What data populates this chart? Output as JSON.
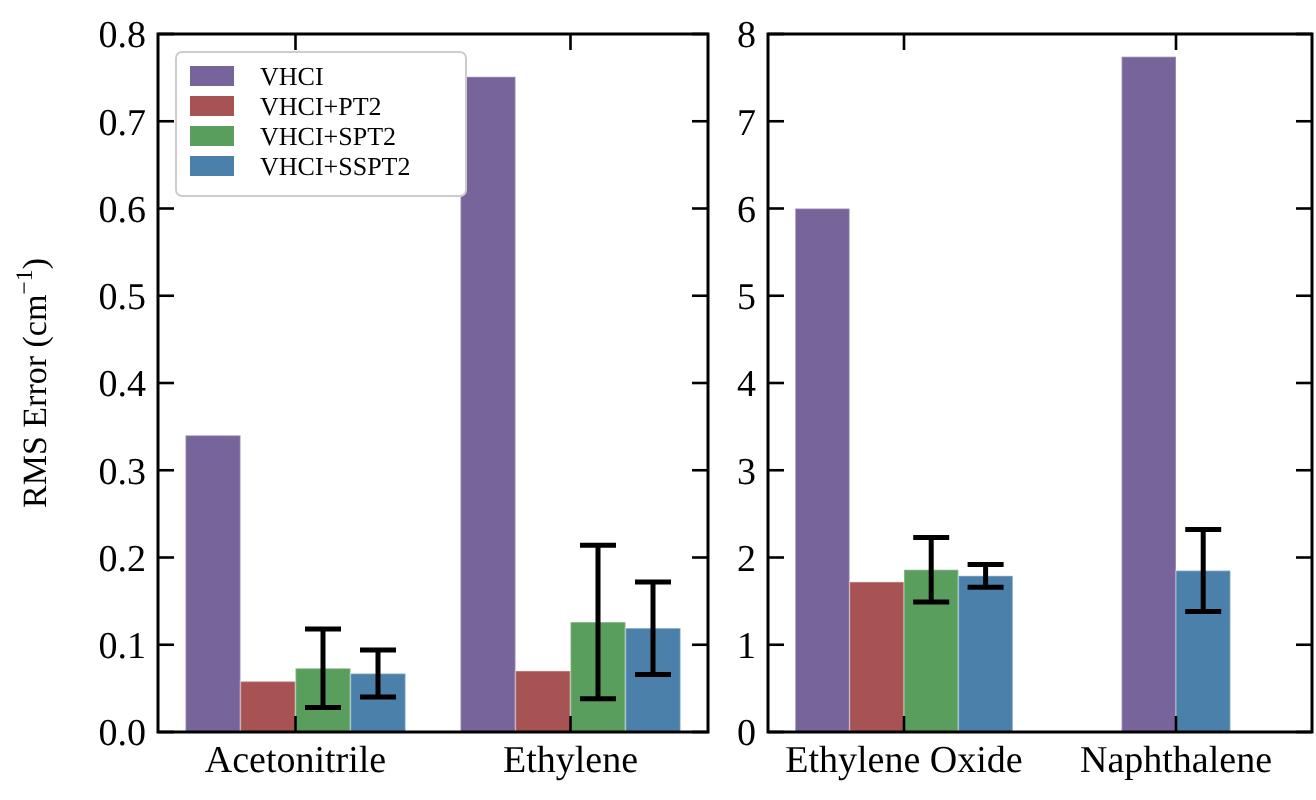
{
  "chart_data": [
    {
      "type": "bar",
      "ylabel": "RMS Error (cm$^{−1}$)",
      "categories": [
        "Acetonitrile",
        "Ethylene"
      ],
      "ylim": [
        0,
        0.8
      ],
      "yticks": [
        {
          "value": 0,
          "label": "0.0"
        },
        0.1,
        0.2,
        0.3,
        0.4,
        0.5,
        0.6,
        0.7,
        0.8
      ],
      "legend": "top left",
      "series": [
        {
          "name": "VHCI",
          "color": "#76649a",
          "values": [
            0.34,
            0.751
          ]
        },
        {
          "name": "VHCI+PT2",
          "color": "#a85353",
          "values": [
            0.058,
            0.07
          ]
        },
        {
          "name": "VHCI+SPT2",
          "color": "#5a9e5e",
          "values": [
            0.073,
            0.126
          ],
          "errors": [
            0.045,
            0.088
          ]
        },
        {
          "name": "VHCI+SSPT2",
          "color": "#4a80aa",
          "values": [
            0.067,
            0.119
          ],
          "errors": [
            0.027,
            0.053
          ]
        }
      ]
    },
    {
      "type": "bar",
      "categories": [
        "Ethylene Oxide",
        "Naphthalene"
      ],
      "ylim": [
        0,
        8
      ],
      "yticks": [
        0,
        1,
        2,
        3,
        4,
        5,
        6,
        7,
        8
      ],
      "series": [
        {
          "color": "#76649a",
          "values": [
            6.0,
            7.74
          ]
        },
        {
          "color": "#a85353",
          "values": [
            1.72,
            null
          ]
        },
        {
          "color": "#5a9e5e",
          "values": [
            1.86,
            null
          ],
          "errors": [
            0.37,
            null
          ]
        },
        {
          "color": "#4a80aa",
          "values": [
            1.79,
            1.85
          ],
          "errors": [
            0.13,
            0.47
          ]
        }
      ]
    }
  ]
}
